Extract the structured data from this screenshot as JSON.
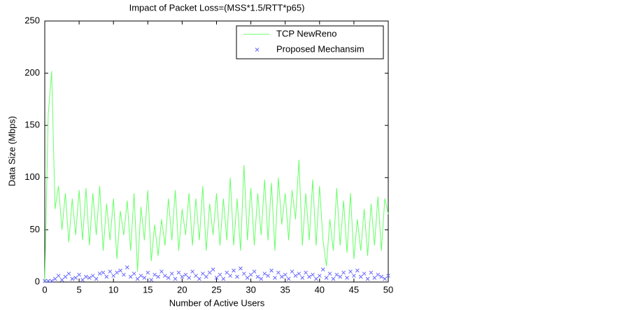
{
  "chart_data": {
    "type": "line",
    "title": "Impact of Packet Loss=(MSS*1.5/RTT*p65)",
    "xlabel": "Number of Active Users",
    "ylabel": "Data Size (Mbps)",
    "x": [
      0,
      0.5,
      1,
      1.5,
      2,
      2.5,
      3,
      3.5,
      4,
      4.5,
      5,
      5.5,
      6,
      6.5,
      7,
      7.5,
      8,
      8.5,
      9,
      9.5,
      10,
      10.5,
      11,
      11.5,
      12,
      12.5,
      13,
      13.5,
      14,
      14.5,
      15,
      15.5,
      16,
      16.5,
      17,
      17.5,
      18,
      18.5,
      19,
      19.5,
      20,
      20.5,
      21,
      21.5,
      22,
      22.5,
      23,
      23.5,
      24,
      24.5,
      25,
      25.5,
      26,
      26.5,
      27,
      27.5,
      28,
      28.5,
      29,
      29.5,
      30,
      30.5,
      31,
      31.5,
      32,
      32.5,
      33,
      33.5,
      34,
      34.5,
      35,
      35.5,
      36,
      36.5,
      37,
      37.5,
      38,
      38.5,
      39,
      39.5,
      40,
      40.5,
      41,
      41.5,
      42,
      42.5,
      43,
      43.5,
      44,
      44.5,
      45,
      45.5,
      46,
      46.5,
      47,
      47.5,
      48,
      48.5,
      49,
      49.5,
      50
    ],
    "series": [
      {
        "name": "TCP NewReno",
        "color": "#66ff66",
        "style": "line",
        "values": [
          0,
          160,
          202,
          70,
          92,
          50,
          85,
          38,
          80,
          45,
          88,
          40,
          90,
          35,
          85,
          45,
          92,
          30,
          75,
          40,
          80,
          22,
          68,
          45,
          78,
          30,
          85,
          10,
          72,
          40,
          88,
          20,
          55,
          25,
          60,
          35,
          80,
          40,
          88,
          30,
          70,
          45,
          85,
          35,
          80,
          40,
          92,
          30,
          75,
          45,
          85,
          35,
          80,
          40,
          100,
          35,
          80,
          30,
          112,
          40,
          90,
          35,
          85,
          45,
          98,
          40,
          95,
          30,
          100,
          55,
          85,
          40,
          88,
          60,
          117,
          35,
          85,
          40,
          98,
          35,
          92,
          40,
          15,
          60,
          30,
          90,
          35,
          78,
          28,
          85,
          22,
          60,
          30,
          70,
          25,
          75,
          35,
          82,
          30,
          80,
          65
        ]
      },
      {
        "name": "Proposed Mechansim",
        "color": "#6666ff",
        "style": "marker",
        "values": [
          1,
          1,
          1,
          3,
          6,
          2,
          5,
          8,
          3,
          4,
          7,
          2,
          5,
          4,
          6,
          3,
          8,
          9,
          5,
          10,
          6,
          9,
          11,
          7,
          14,
          5,
          8,
          3,
          6,
          4,
          9,
          2,
          7,
          5,
          10,
          6,
          4,
          8,
          3,
          9,
          5,
          7,
          4,
          10,
          6,
          3,
          8,
          5,
          9,
          12,
          4,
          7,
          3,
          9,
          6,
          11,
          5,
          13,
          8,
          4,
          7,
          10,
          5,
          3,
          8,
          6,
          11,
          4,
          9,
          5,
          7,
          3,
          10,
          6,
          8,
          4,
          9,
          5,
          7,
          3,
          6,
          12,
          4,
          8,
          3,
          7,
          5,
          9,
          4,
          10,
          6,
          11,
          5,
          8,
          3,
          9,
          4,
          7,
          5,
          3,
          6
        ]
      }
    ],
    "xlim": [
      0,
      50
    ],
    "xticks": [
      0,
      5,
      10,
      15,
      20,
      25,
      30,
      35,
      40,
      45,
      50
    ],
    "ylim": [
      0,
      250
    ],
    "yticks": [
      0,
      50,
      100,
      150,
      200,
      250
    ],
    "grid": false,
    "legend": "upper right"
  }
}
